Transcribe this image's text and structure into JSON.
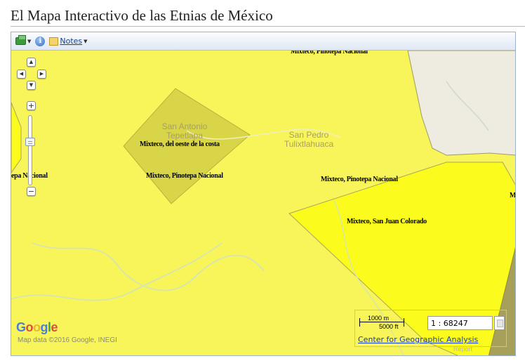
{
  "page": {
    "title": "El Mapa Interactivo de las Etnias de México"
  },
  "toolbar": {
    "notes_label": "Notes",
    "info_glyph": "i"
  },
  "icons": {
    "layers": "layers-icon",
    "info": "info-icon",
    "notes": "notes-icon",
    "pan_up": "▲",
    "pan_down": "▼",
    "pan_left": "◀",
    "pan_right": "▶",
    "zoom_in": "+",
    "zoom_out": "−"
  },
  "map": {
    "places": [
      {
        "name": "San Antonio\nTepetlapa"
      },
      {
        "name": "San Pedro\nTulixtlahuaca"
      }
    ],
    "ethnic_labels": [
      "Mixteco, Pinotepa Nacional",
      "Mixteco, del oeste de la costa",
      "Mixteco, Pinotepa Nacional",
      "epa Nacional",
      "Mixteco, Pinotepa Nacional",
      "Mixteco, San Juan Colorado",
      "M"
    ],
    "colors": {
      "base_yellow": "#f7f55a",
      "bright_yellow": "#fbfb1e",
      "olive_polygon": "#d8d548",
      "land_grey": "#eeebe0",
      "dark_olive": "#a7a05a"
    }
  },
  "attribution": {
    "google_logo": "Google",
    "map_data": "Map data ©2016 Google, INEGI",
    "report": "Report"
  },
  "scale": {
    "metric": "1000 m",
    "imperial": "5000 ft",
    "ratio": "1 : 68247",
    "link": "Center for Geographic Analysis"
  }
}
